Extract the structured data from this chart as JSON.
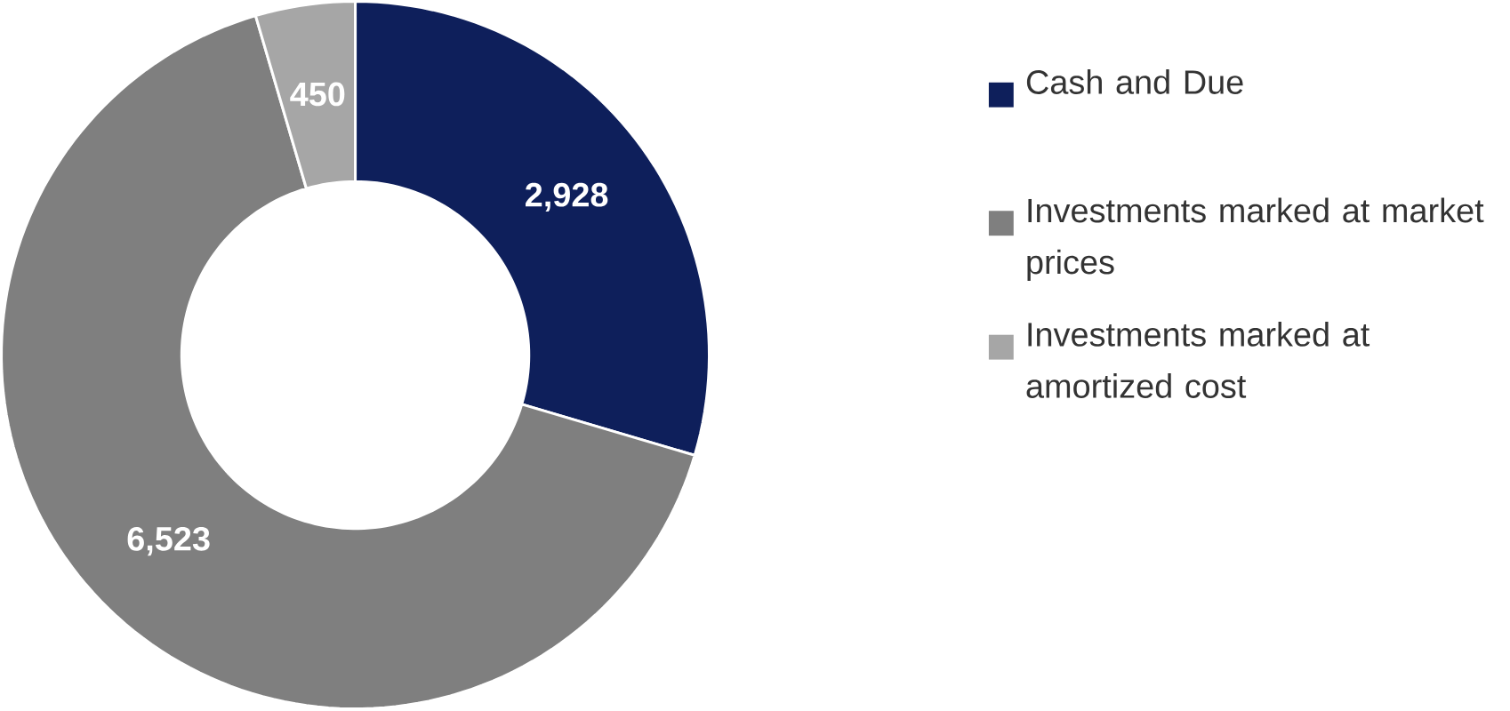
{
  "chart_data": {
    "type": "donut",
    "categories": [
      "Cash and Due",
      "Investments marked at market prices",
      "Investments marked at amortized cost"
    ],
    "values": [
      2928,
      6523,
      450
    ],
    "value_labels": [
      "2,928",
      "6,523",
      "450"
    ],
    "colors": [
      "#0e1f5b",
      "#7f7f7f",
      "#a6a6a6"
    ],
    "legend": "right"
  }
}
